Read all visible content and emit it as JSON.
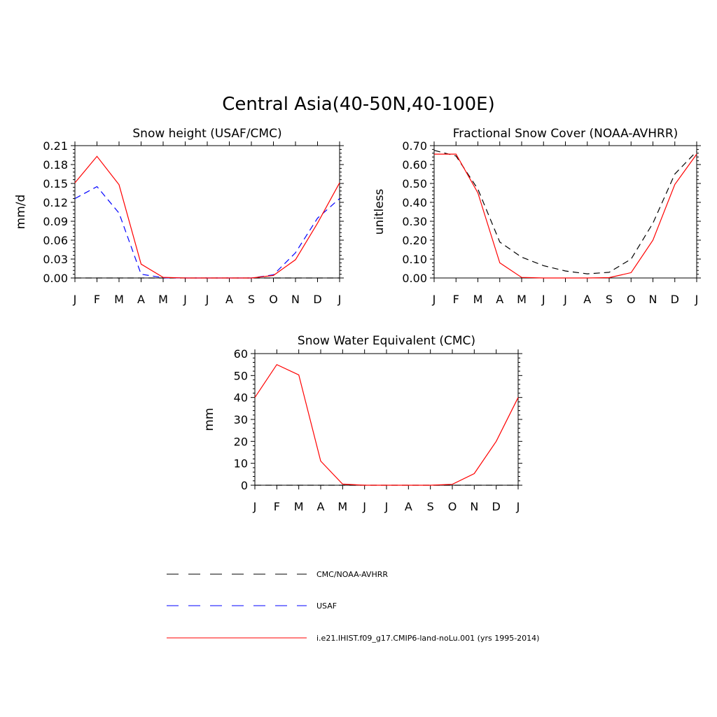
{
  "figure": {
    "title": "Central Asia(40-50N,40-100E)"
  },
  "legend": {
    "entries": [
      {
        "label": "CMC/NOAA-AVHRR",
        "color": "#000000",
        "dash": "dashed"
      },
      {
        "label": "USAF",
        "color": "#0000ff",
        "dash": "dashed"
      },
      {
        "label": "i.e21.IHIST.f09_g17.CMIP6-land-noLu.001 (yrs 1995-2014)",
        "color": "#ff0000",
        "dash": "solid"
      }
    ]
  },
  "chart_data": [
    {
      "type": "line",
      "title": "Snow height (USAF/CMC)",
      "xlabel": "",
      "ylabel": "mm/d",
      "categories": [
        "J",
        "F",
        "M",
        "A",
        "M",
        "J",
        "J",
        "A",
        "S",
        "O",
        "N",
        "D",
        "J"
      ],
      "ylim": [
        0,
        0.21
      ],
      "yticks": [
        "0.00",
        "0.03",
        "0.06",
        "0.09",
        "0.12",
        "0.15",
        "0.18",
        "0.21"
      ],
      "grid": false,
      "series": [
        {
          "color": "#000000",
          "dash": "dashed",
          "values": [
            0,
            0,
            0,
            0,
            0,
            0,
            0,
            0,
            0,
            0,
            0,
            0,
            0
          ]
        },
        {
          "color": "#0000ff",
          "dash": "dashed",
          "values": [
            0.126,
            0.145,
            0.103,
            0.006,
            0.0005,
            0,
            0,
            0,
            0,
            0.005,
            0.04,
            0.095,
            0.126
          ]
        },
        {
          "color": "#ff0000",
          "dash": "solid",
          "values": [
            0.151,
            0.193,
            0.148,
            0.022,
            0.001,
            0,
            0,
            0,
            0,
            0.004,
            0.029,
            0.087,
            0.151
          ]
        }
      ]
    },
    {
      "type": "line",
      "title": "Fractional Snow Cover (NOAA-AVHRR)",
      "xlabel": "",
      "ylabel": "unitless",
      "categories": [
        "J",
        "F",
        "M",
        "A",
        "M",
        "J",
        "J",
        "A",
        "S",
        "O",
        "N",
        "D",
        "J"
      ],
      "ylim": [
        0,
        0.7
      ],
      "yticks": [
        "0.00",
        "0.10",
        "0.20",
        "0.30",
        "0.40",
        "0.50",
        "0.60",
        "0.70"
      ],
      "grid": false,
      "series": [
        {
          "color": "#000000",
          "dash": "dashed",
          "values": [
            0.675,
            0.645,
            0.47,
            0.19,
            0.11,
            0.065,
            0.037,
            0.022,
            0.03,
            0.1,
            0.29,
            0.55,
            0.67
          ]
        },
        {
          "color": "#ff0000",
          "dash": "solid",
          "values": [
            0.655,
            0.655,
            0.45,
            0.08,
            0.003,
            0,
            0,
            0,
            0.002,
            0.028,
            0.2,
            0.495,
            0.655
          ]
        }
      ]
    },
    {
      "type": "line",
      "title": "Snow Water Equivalent (CMC)",
      "xlabel": "",
      "ylabel": "mm",
      "categories": [
        "J",
        "F",
        "M",
        "A",
        "M",
        "J",
        "J",
        "A",
        "S",
        "O",
        "N",
        "D",
        "J"
      ],
      "ylim": [
        0,
        60
      ],
      "yticks": [
        "0",
        "10",
        "20",
        "30",
        "40",
        "50",
        "60"
      ],
      "grid": false,
      "series": [
        {
          "color": "#000000",
          "dash": "dashed",
          "values": [
            0,
            0,
            0,
            0,
            0,
            0,
            0,
            0,
            0,
            0,
            0,
            0,
            0
          ]
        },
        {
          "color": "#ff0000",
          "dash": "solid",
          "values": [
            40,
            55,
            50.3,
            11,
            0.5,
            0,
            0,
            0,
            0,
            0.4,
            5.3,
            20,
            40
          ]
        }
      ]
    }
  ]
}
